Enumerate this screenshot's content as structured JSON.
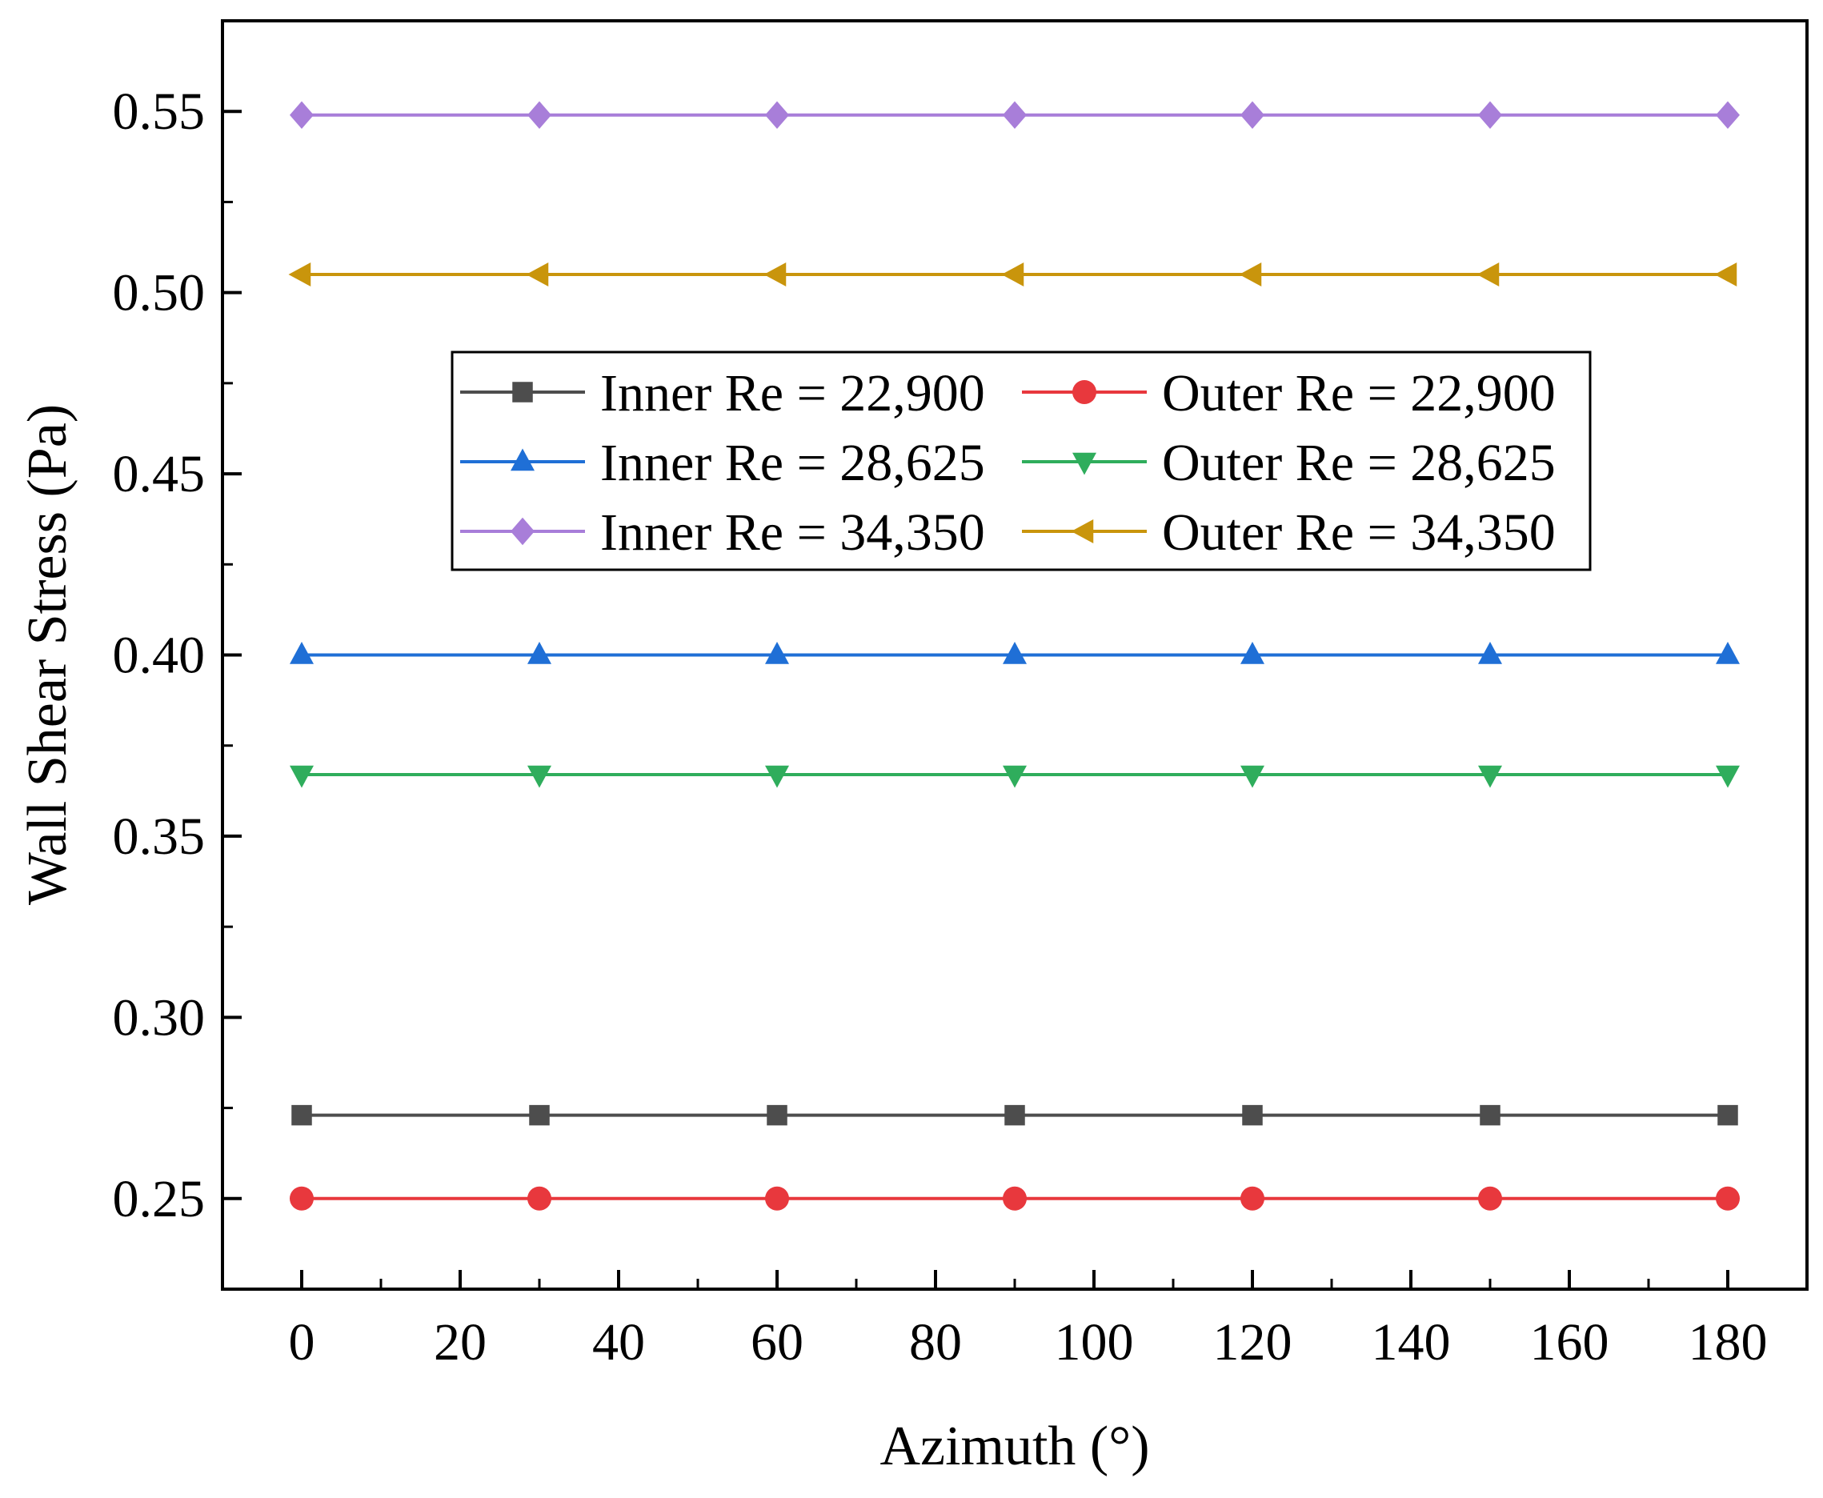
{
  "chart_data": {
    "type": "line",
    "title": "",
    "xlabel": "Azimuth (°)",
    "ylabel": "Wall Shear Stress (Pa)",
    "xlim": [
      -10,
      190
    ],
    "ylim": [
      0.225,
      0.575
    ],
    "xticks": [
      0,
      20,
      40,
      60,
      80,
      100,
      120,
      140,
      160,
      180
    ],
    "xtick_labels": [
      "0",
      "20",
      "40",
      "60",
      "80",
      "100",
      "120",
      "140",
      "160",
      "180"
    ],
    "yticks": [
      0.25,
      0.3,
      0.35,
      0.4,
      0.45,
      0.5,
      0.55
    ],
    "ytick_labels": [
      "0.25",
      "0.30",
      "0.35",
      "0.40",
      "0.45",
      "0.50",
      "0.55"
    ],
    "x": [
      0,
      30,
      60,
      90,
      120,
      150,
      180
    ],
    "legend_position": "center",
    "series": [
      {
        "name": "Inner Re = 22,900",
        "marker": "square",
        "color": "#4d4d4d",
        "values": [
          0.273,
          0.273,
          0.273,
          0.273,
          0.273,
          0.273,
          0.273
        ]
      },
      {
        "name": "Outer Re = 22,900",
        "marker": "circle",
        "color": "#e8383d",
        "values": [
          0.25,
          0.25,
          0.25,
          0.25,
          0.25,
          0.25,
          0.25
        ]
      },
      {
        "name": "Inner Re = 28,625",
        "marker": "triangle-up",
        "color": "#1f6fd6",
        "values": [
          0.4,
          0.4,
          0.4,
          0.4,
          0.4,
          0.4,
          0.4
        ]
      },
      {
        "name": "Outer Re = 28,625",
        "marker": "triangle-down",
        "color": "#2fad5c",
        "values": [
          0.367,
          0.367,
          0.367,
          0.367,
          0.367,
          0.367,
          0.367
        ]
      },
      {
        "name": "Inner Re = 34,350",
        "marker": "diamond",
        "color": "#a87ed9",
        "values": [
          0.549,
          0.549,
          0.549,
          0.549,
          0.549,
          0.549,
          0.549
        ]
      },
      {
        "name": "Outer Re = 34,350",
        "marker": "triangle-left",
        "color": "#c9950c",
        "values": [
          0.505,
          0.505,
          0.505,
          0.505,
          0.505,
          0.505,
          0.505
        ]
      }
    ]
  }
}
